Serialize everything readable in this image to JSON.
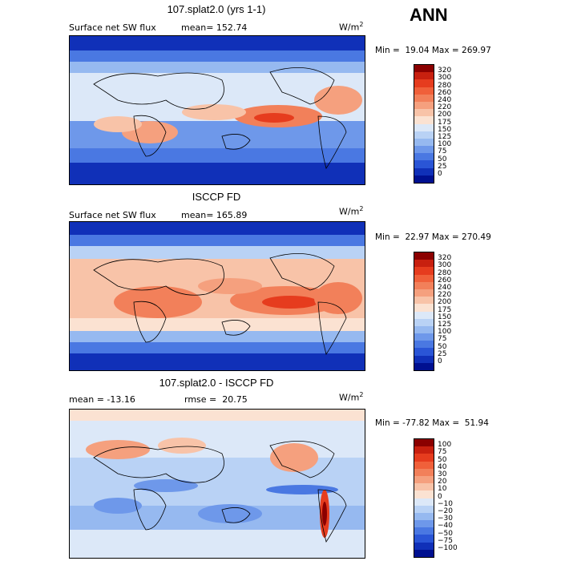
{
  "season": "ANN",
  "panels": [
    {
      "title": "107.splat2.0 (yrs 1-1)",
      "left_label": "Surface net SW flux",
      "stat_label": "mean= 152.74",
      "units": "W/m",
      "units_exp": "2",
      "minmax": "Min =  19.04 Max = 269.97",
      "colorbar": {
        "levels": [
          "320",
          "300",
          "280",
          "260",
          "240",
          "220",
          "200",
          "175",
          "150",
          "125",
          "100",
          "75",
          "50",
          "25",
          "0"
        ],
        "colors": [
          "#8b0000",
          "#c8200f",
          "#e63c1e",
          "#f0603a",
          "#f2805a",
          "#f5a07e",
          "#f8c3a8",
          "#fbe2d2",
          "#dce8f8",
          "#b9d2f5",
          "#96b9f0",
          "#6e98ea",
          "#4a78e2",
          "#2a55d6",
          "#1030b8",
          "#001090"
        ]
      }
    },
    {
      "title": "ISCCP FD",
      "left_label": "Surface net SW flux",
      "stat_label": "mean= 165.89",
      "units": "W/m",
      "units_exp": "2",
      "minmax": "Min =  22.97 Max = 270.49",
      "colorbar": {
        "levels": [
          "320",
          "300",
          "280",
          "260",
          "240",
          "220",
          "200",
          "175",
          "150",
          "125",
          "100",
          "75",
          "50",
          "25",
          "0"
        ],
        "colors": [
          "#8b0000",
          "#c8200f",
          "#e63c1e",
          "#f0603a",
          "#f2805a",
          "#f5a07e",
          "#f8c3a8",
          "#fbe2d2",
          "#dce8f8",
          "#b9d2f5",
          "#96b9f0",
          "#6e98ea",
          "#4a78e2",
          "#2a55d6",
          "#1030b8",
          "#001090"
        ]
      }
    },
    {
      "title": "107.splat2.0 - ISCCP FD",
      "left_label": "mean = -13.16",
      "stat_label": "rmse =  20.75",
      "units": "W/m",
      "units_exp": "2",
      "minmax": "Min = -77.82 Max =  51.94",
      "colorbar": {
        "levels": [
          "100",
          "75",
          "50",
          "40",
          "30",
          "20",
          "10",
          "0",
          "−10",
          "−20",
          "−30",
          "−40",
          "−50",
          "−75",
          "−100"
        ],
        "colors": [
          "#8b0000",
          "#c8200f",
          "#e63c1e",
          "#f0603a",
          "#f2805a",
          "#f5a07e",
          "#f8c3a8",
          "#fbe2d2",
          "#dce8f8",
          "#b9d2f5",
          "#96b9f0",
          "#6e98ea",
          "#4a78e2",
          "#2a55d6",
          "#1030b8",
          "#001090"
        ]
      }
    }
  ]
}
